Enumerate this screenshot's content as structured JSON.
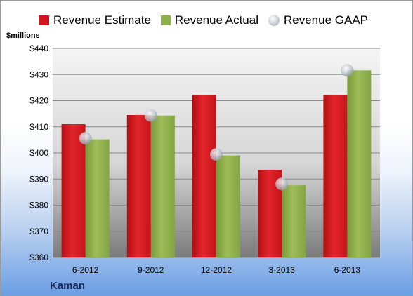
{
  "legend": [
    {
      "label": "Revenue Estimate",
      "color": "#d4151c",
      "shape": "square"
    },
    {
      "label": "Revenue Actual",
      "color": "#8fb04a",
      "shape": "square"
    },
    {
      "label": "Revenue GAAP",
      "color": "#c9cdd6",
      "shape": "circle"
    }
  ],
  "unit_label": "$millions",
  "company": "Kaman",
  "chart_data": {
    "type": "bar",
    "categories": [
      "6-2012",
      "9-2012",
      "12-2012",
      "3-2013",
      "6-2013"
    ],
    "series": [
      {
        "name": "Revenue Estimate",
        "values": [
          411,
          414.5,
          422.2,
          393.5,
          422.2
        ],
        "color": "#d4151c"
      },
      {
        "name": "Revenue Actual",
        "values": [
          405.2,
          414.3,
          399,
          387.6,
          431.6
        ],
        "color": "#8fb04a"
      },
      {
        "name": "Revenue GAAP",
        "type": "scatter",
        "values": [
          405.6,
          414.3,
          399.4,
          388.1,
          431.6
        ],
        "color": "#c9cdd6"
      }
    ],
    "ylabel": "$millions",
    "ylim": [
      360,
      440
    ],
    "yticks": [
      360,
      370,
      380,
      390,
      400,
      410,
      420,
      430,
      440
    ],
    "ytick_labels": [
      "$360",
      "$370",
      "$380",
      "$390",
      "$400",
      "$410",
      "$420",
      "$430",
      "$440"
    ],
    "grid": true,
    "legend_position": "top"
  }
}
